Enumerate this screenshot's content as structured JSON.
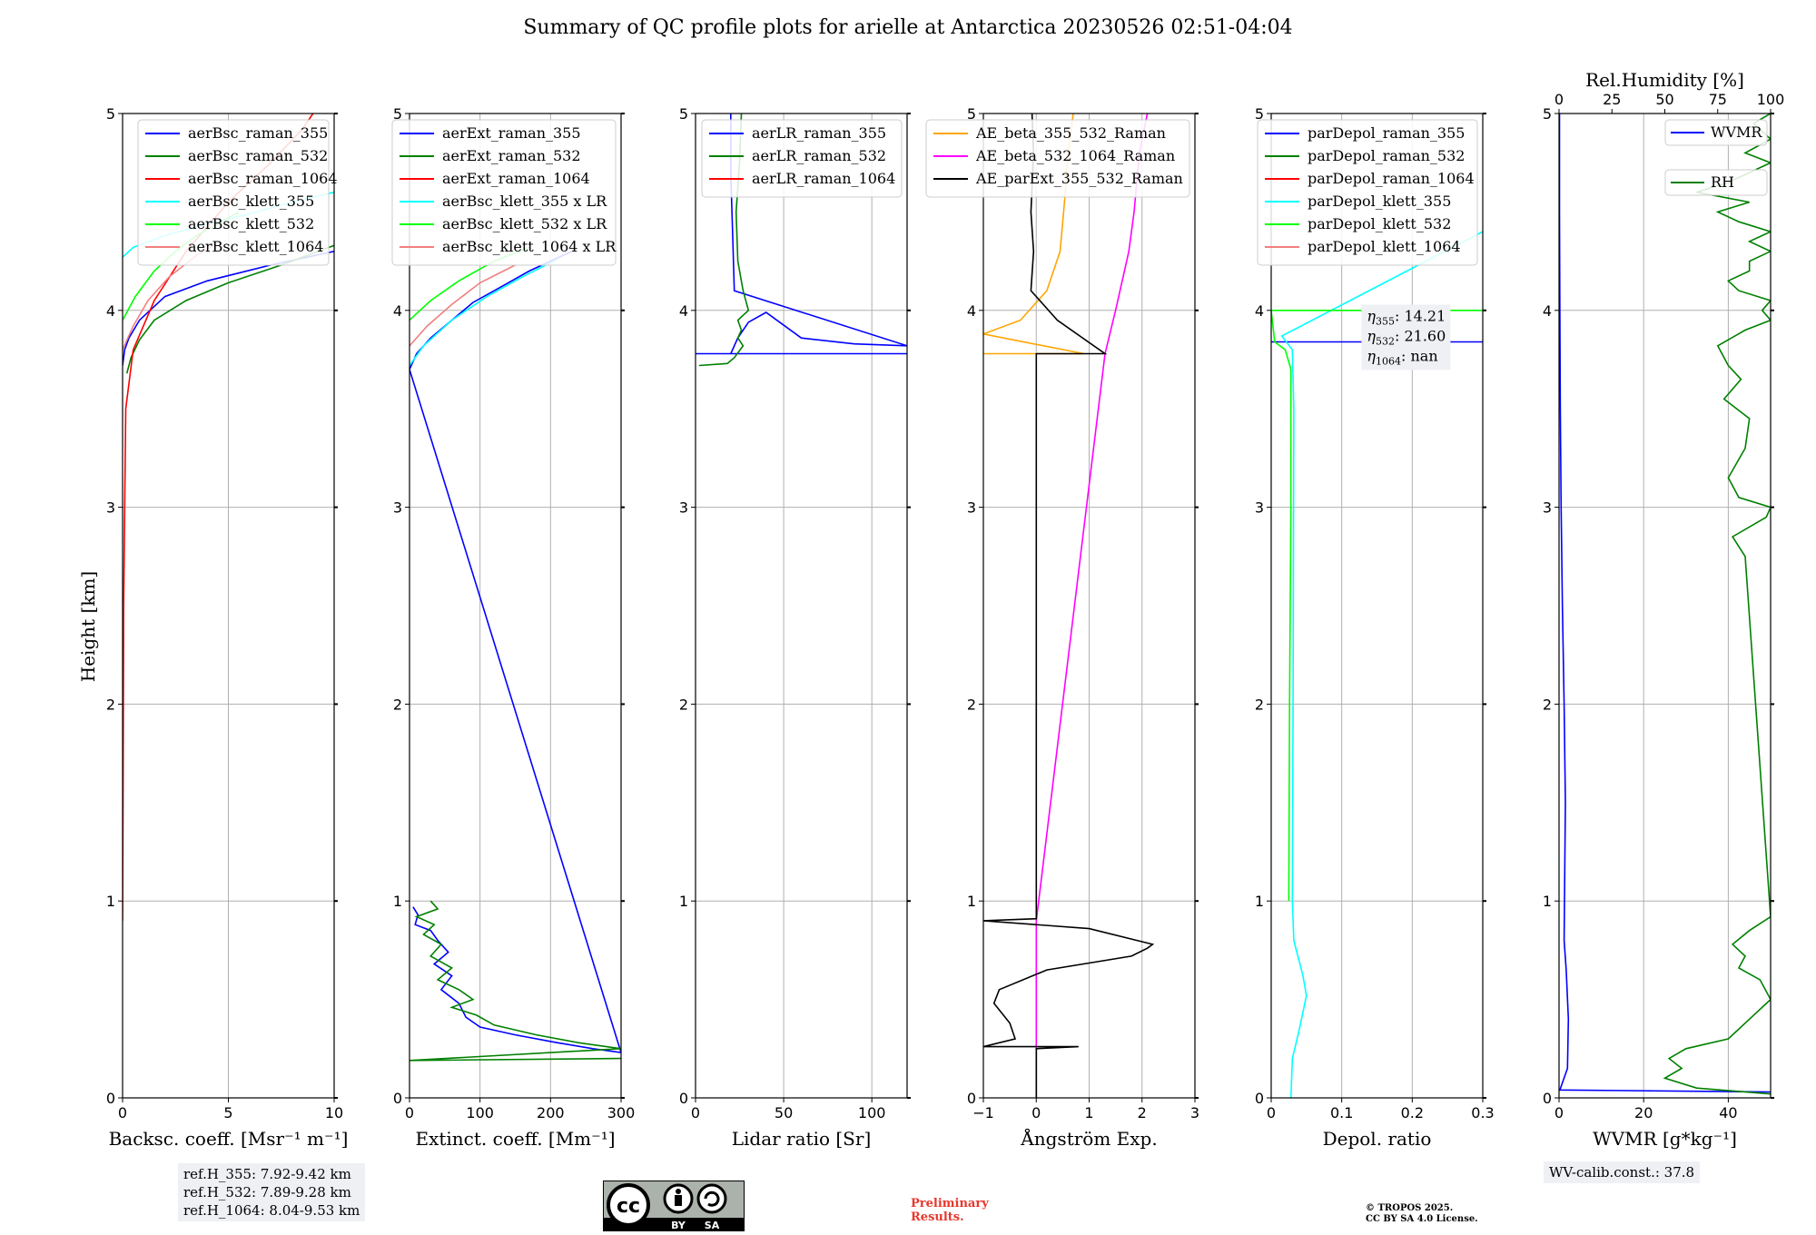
{
  "figure": {
    "title": "Summary of QC profile plots for arielle at Antarctica 20230526 02:51-04:04",
    "ylabel": "Height [km]",
    "ref_heights": [
      "ref.H_355: 7.92-9.42 km",
      "ref.H_532: 7.89-9.28 km",
      "ref.H_1064: 8.04-9.53 km"
    ],
    "wv_calib": "WV-calib.const.: 37.8",
    "preliminary": [
      "Preliminary",
      "Results."
    ],
    "copyright": [
      "© TROPOS 2025.",
      "CC BY SA 4.0 License."
    ],
    "cc_badge": {
      "labels": [
        "BY",
        "SA"
      ]
    }
  },
  "chart_data": [
    {
      "type": "line",
      "xlabel": "Backsc. coeff. [Msr⁻¹ m⁻¹]",
      "ylabel": "Height [km]",
      "xlim": [
        0,
        10
      ],
      "ylim": [
        0,
        5
      ],
      "xticks": [
        0,
        5,
        10
      ],
      "yticks": [
        0,
        1,
        2,
        3,
        4,
        5
      ],
      "grid": true,
      "legend_position": "top-right",
      "series": [
        {
          "name": "aerBsc_raman_355",
          "color": "#0000ff",
          "x": [
            0,
            0.1,
            0.3,
            0.8,
            2,
            4,
            7,
            10
          ],
          "y": [
            3.72,
            3.8,
            3.86,
            3.95,
            4.07,
            4.15,
            4.23,
            4.3
          ]
        },
        {
          "name": "aerBsc_raman_532",
          "color": "#008000",
          "x": [
            0.2,
            0.4,
            0.8,
            1.5,
            3,
            5,
            7.5,
            10
          ],
          "y": [
            3.68,
            3.76,
            3.85,
            3.95,
            4.05,
            4.14,
            4.23,
            4.33
          ]
        },
        {
          "name": "aerBsc_raman_1064",
          "color": "#ff0000",
          "x": [
            0,
            0.02,
            0.05,
            0.15,
            0.5,
            1.5,
            3,
            5,
            7,
            8.5,
            9
          ],
          "y": [
            0.9,
            1.5,
            2.5,
            3.5,
            3.8,
            4.05,
            4.3,
            4.55,
            4.75,
            4.92,
            5.0
          ]
        },
        {
          "name": "aerBsc_klett_355",
          "color": "#00ffff",
          "x": [
            0,
            0.5,
            2,
            4,
            6,
            8,
            10
          ],
          "y": [
            4.27,
            4.32,
            4.38,
            4.44,
            4.49,
            4.55,
            4.6
          ]
        },
        {
          "name": "aerBsc_klett_532",
          "color": "#00ff00",
          "x": [
            0,
            0.6,
            1.5,
            2.5,
            3.5,
            4.5,
            5.5
          ],
          "y": [
            3.95,
            4.07,
            4.2,
            4.3,
            4.38,
            4.44,
            4.5
          ]
        },
        {
          "name": "aerBsc_klett_1064",
          "color": "#f08080",
          "x": [
            0,
            0.5,
            1.2,
            2.2,
            3.5,
            4.5
          ],
          "y": [
            3.8,
            3.92,
            4.05,
            4.17,
            4.28,
            4.34
          ]
        }
      ],
      "textbox": ""
    },
    {
      "type": "line",
      "xlabel": "Extinct. coeff. [Mm⁻¹]",
      "xlim": [
        0,
        300
      ],
      "ylim": [
        0,
        5
      ],
      "xticks": [
        0,
        100,
        200,
        300
      ],
      "yticks": [
        0,
        1,
        2,
        3,
        4,
        5
      ],
      "grid": true,
      "legend_position": "top-right",
      "series": [
        {
          "name": "aerExt_raman_355",
          "color": "#0000ff",
          "x": [
            5,
            12,
            8,
            30,
            40,
            55,
            35,
            60,
            45,
            70,
            80,
            100,
            150,
            210,
            260,
            300,
            0,
            10,
            30,
            60,
            90,
            130,
            170,
            230
          ],
          "y": [
            0.97,
            0.93,
            0.88,
            0.85,
            0.8,
            0.74,
            0.68,
            0.62,
            0.55,
            0.48,
            0.41,
            0.36,
            0.32,
            0.28,
            0.25,
            0.23,
            3.7,
            3.78,
            3.86,
            3.95,
            4.04,
            4.12,
            4.2,
            4.3
          ]
        },
        {
          "name": "aerExt_raman_532",
          "color": "#008000",
          "x": [
            30,
            40,
            10,
            35,
            20,
            45,
            30,
            60,
            40,
            70,
            90,
            60,
            95,
            120,
            180,
            240,
            300,
            0,
            300
          ],
          "y": [
            1.0,
            0.96,
            0.92,
            0.88,
            0.83,
            0.78,
            0.72,
            0.66,
            0.6,
            0.55,
            0.5,
            0.46,
            0.42,
            0.37,
            0.32,
            0.28,
            0.25,
            0.19,
            0.2
          ]
        },
        {
          "name": "aerExt_raman_1064",
          "color": "#ff0000",
          "x": [],
          "y": []
        },
        {
          "name": "aerBsc_klett_355 x LR",
          "color": "#00ffff",
          "x": [
            0,
            20,
            60,
            110,
            160,
            210
          ],
          "y": [
            3.72,
            3.82,
            3.95,
            4.07,
            4.17,
            4.26
          ]
        },
        {
          "name": "aerBsc_klett_532 x LR",
          "color": "#00ff00",
          "x": [
            0,
            30,
            70,
            120,
            170
          ],
          "y": [
            3.95,
            4.05,
            4.15,
            4.25,
            4.32
          ]
        },
        {
          "name": "aerBsc_klett_1064 x LR",
          "color": "#f08080",
          "x": [
            0,
            25,
            60,
            100,
            150
          ],
          "y": [
            3.82,
            3.92,
            4.03,
            4.14,
            4.23
          ]
        }
      ],
      "textbox": ""
    },
    {
      "type": "line",
      "xlabel": "Lidar ratio [Sr]",
      "xlim": [
        0,
        120
      ],
      "ylim": [
        0,
        5
      ],
      "xticks": [
        0,
        50,
        100
      ],
      "yticks": [
        0,
        1,
        2,
        3,
        4,
        5
      ],
      "grid": true,
      "legend_position": "top-right",
      "series": [
        {
          "name": "aerLR_raman_355",
          "color": "#0000ff",
          "x": [
            0,
            120,
            20,
            24,
            30,
            40,
            60,
            90,
            120,
            22,
            21,
            20,
            20
          ],
          "y": [
            3.78,
            3.78,
            3.78,
            3.86,
            3.94,
            3.99,
            3.86,
            3.83,
            3.82,
            4.1,
            4.4,
            4.7,
            5.0
          ]
        },
        {
          "name": "aerLR_raman_532",
          "color": "#008000",
          "x": [
            2,
            18,
            22,
            27,
            24,
            26,
            24,
            30,
            27,
            24,
            23,
            25,
            26
          ],
          "y": [
            3.72,
            3.73,
            3.76,
            3.82,
            3.86,
            3.9,
            3.95,
            4.0,
            4.1,
            4.25,
            4.5,
            4.75,
            5.0
          ]
        },
        {
          "name": "aerLR_raman_1064",
          "color": "#ff0000",
          "x": [],
          "y": []
        }
      ],
      "textbox": ""
    },
    {
      "type": "line",
      "xlabel": "Ångström Exp.",
      "xlim": [
        -1,
        3
      ],
      "ylim": [
        0,
        5
      ],
      "xticks": [
        -1,
        0,
        1,
        2,
        3
      ],
      "yticks": [
        0,
        1,
        2,
        3,
        4,
        5
      ],
      "grid": true,
      "legend_position": "top-right",
      "series": [
        {
          "name": "AE_beta_355_532_Raman",
          "color": "#ffa500",
          "x": [
            -1,
            0.9,
            -1,
            -0.3,
            0.2,
            0.45,
            0.55,
            0.6,
            0.7
          ],
          "y": [
            3.78,
            3.78,
            3.88,
            3.95,
            4.1,
            4.3,
            4.6,
            4.8,
            5.0
          ]
        },
        {
          "name": "AE_beta_532_1064_Raman",
          "color": "#ff00ff",
          "x": [
            0,
            0,
            0,
            1.3,
            1.5,
            1.75,
            1.85,
            1.95,
            2.1
          ],
          "y": [
            0.0,
            0.8,
            0.9,
            3.78,
            4.0,
            4.3,
            4.5,
            4.8,
            5.0
          ]
        },
        {
          "name": "AE_parExt_355_532_Raman",
          "color": "#000000",
          "x": [
            0,
            0,
            0.8,
            -1,
            -0.4,
            -0.5,
            -0.8,
            -0.7,
            0.2,
            1.8,
            2.1,
            2.2,
            1.0,
            -1,
            0,
            0,
            0,
            0.6,
            1.3,
            0.4,
            -0.1,
            -0.05,
            -0.1,
            -0.05,
            -0.08
          ],
          "y": [
            0.0,
            0.25,
            0.26,
            0.26,
            0.3,
            0.38,
            0.48,
            0.55,
            0.65,
            0.72,
            0.76,
            0.78,
            0.86,
            0.9,
            0.91,
            3.77,
            3.78,
            3.78,
            3.78,
            3.95,
            4.1,
            4.3,
            4.5,
            4.8,
            5.0
          ]
        }
      ],
      "textbox": ""
    },
    {
      "type": "line",
      "xlabel": "Depol. ratio",
      "xlim": [
        0,
        0.3
      ],
      "ylim": [
        0,
        5
      ],
      "xticks": [
        0.0,
        0.1,
        0.2,
        0.3
      ],
      "yticks": [
        0,
        1,
        2,
        3,
        4,
        5
      ],
      "grid": true,
      "legend_position": "top-right",
      "series": [
        {
          "name": "parDepol_raman_355",
          "color": "#0000ff",
          "x": [
            0,
            0.3
          ],
          "y": [
            3.84,
            3.84
          ]
        },
        {
          "name": "parDepol_raman_532",
          "color": "#008000",
          "x": [],
          "y": []
        },
        {
          "name": "parDepol_raman_1064",
          "color": "#ff0000",
          "x": [],
          "y": []
        },
        {
          "name": "parDepol_klett_355",
          "color": "#00ffff",
          "x": [
            0.028,
            0.03,
            0.04,
            0.05,
            0.045,
            0.032,
            0.03,
            0.031,
            0.032,
            0.03,
            0.015,
            0.3
          ],
          "y": [
            0.0,
            0.2,
            0.35,
            0.52,
            0.62,
            0.8,
            1.0,
            2.0,
            3.5,
            3.8,
            3.87,
            4.4
          ]
        },
        {
          "name": "parDepol_klett_532",
          "color": "#00ff00",
          "x": [
            0.025,
            0.026,
            0.028,
            0.028,
            0.02,
            0.005,
            0,
            0.3
          ],
          "y": [
            1.0,
            2.0,
            3.0,
            3.7,
            3.8,
            3.84,
            4.0,
            4.0
          ]
        },
        {
          "name": "parDepol_klett_1064",
          "color": "#f08080",
          "x": [],
          "y": []
        }
      ],
      "textbox": [
        "η355: 14.21",
        "η532: 21.60",
        "η1064: nan"
      ]
    },
    {
      "type": "line",
      "xlabel": "WVMR [g*kg⁻¹]",
      "xlabel_top": "Rel.Humidity [%]",
      "xlim": [
        0,
        50
      ],
      "ylim": [
        0,
        5
      ],
      "xticks": [
        0,
        20,
        40
      ],
      "yticks": [
        0,
        1,
        2,
        3,
        4,
        5
      ],
      "xlim_top": [
        0,
        100
      ],
      "xticks_top": [
        0,
        25,
        50,
        75,
        100
      ],
      "grid": true,
      "legend_position": "top-right",
      "series": [
        {
          "name": "WVMR",
          "color": "#0000ff",
          "x": [
            50,
            0.2,
            2,
            2.2,
            1.7,
            1.2,
            1.5,
            1.2,
            0.8,
            0.5,
            0.3,
            0.2,
            0.1,
            0.1
          ],
          "y": [
            0.03,
            0.04,
            0.15,
            0.4,
            0.65,
            0.8,
            1.5,
            2.0,
            2.5,
            3.0,
            3.5,
            4.0,
            4.5,
            5.0
          ]
        },
        {
          "name": "RH",
          "color": "#008000",
          "x_rh": [
            100,
            65,
            50,
            58,
            52,
            60,
            80,
            90,
            100,
            95,
            85,
            88,
            82,
            90,
            100,
            88,
            82,
            98,
            100,
            85,
            80,
            88,
            90,
            78,
            86,
            80,
            75,
            88,
            100,
            96,
            100,
            85,
            80,
            90,
            90,
            100,
            90,
            100,
            85,
            75,
            90,
            65,
            80,
            100,
            88,
            100,
            92,
            100
          ],
          "y": [
            0.02,
            0.05,
            0.1,
            0.15,
            0.2,
            0.25,
            0.3,
            0.4,
            0.5,
            0.6,
            0.66,
            0.72,
            0.78,
            0.85,
            0.92,
            2.75,
            2.85,
            2.95,
            3.0,
            3.05,
            3.15,
            3.3,
            3.45,
            3.55,
            3.65,
            3.72,
            3.82,
            3.9,
            3.95,
            4.0,
            4.05,
            4.1,
            4.15,
            4.2,
            4.25,
            4.3,
            4.35,
            4.4,
            4.45,
            4.5,
            4.55,
            4.6,
            4.65,
            4.75,
            4.8,
            4.87,
            4.95,
            5.0
          ]
        }
      ],
      "textbox": ""
    }
  ]
}
